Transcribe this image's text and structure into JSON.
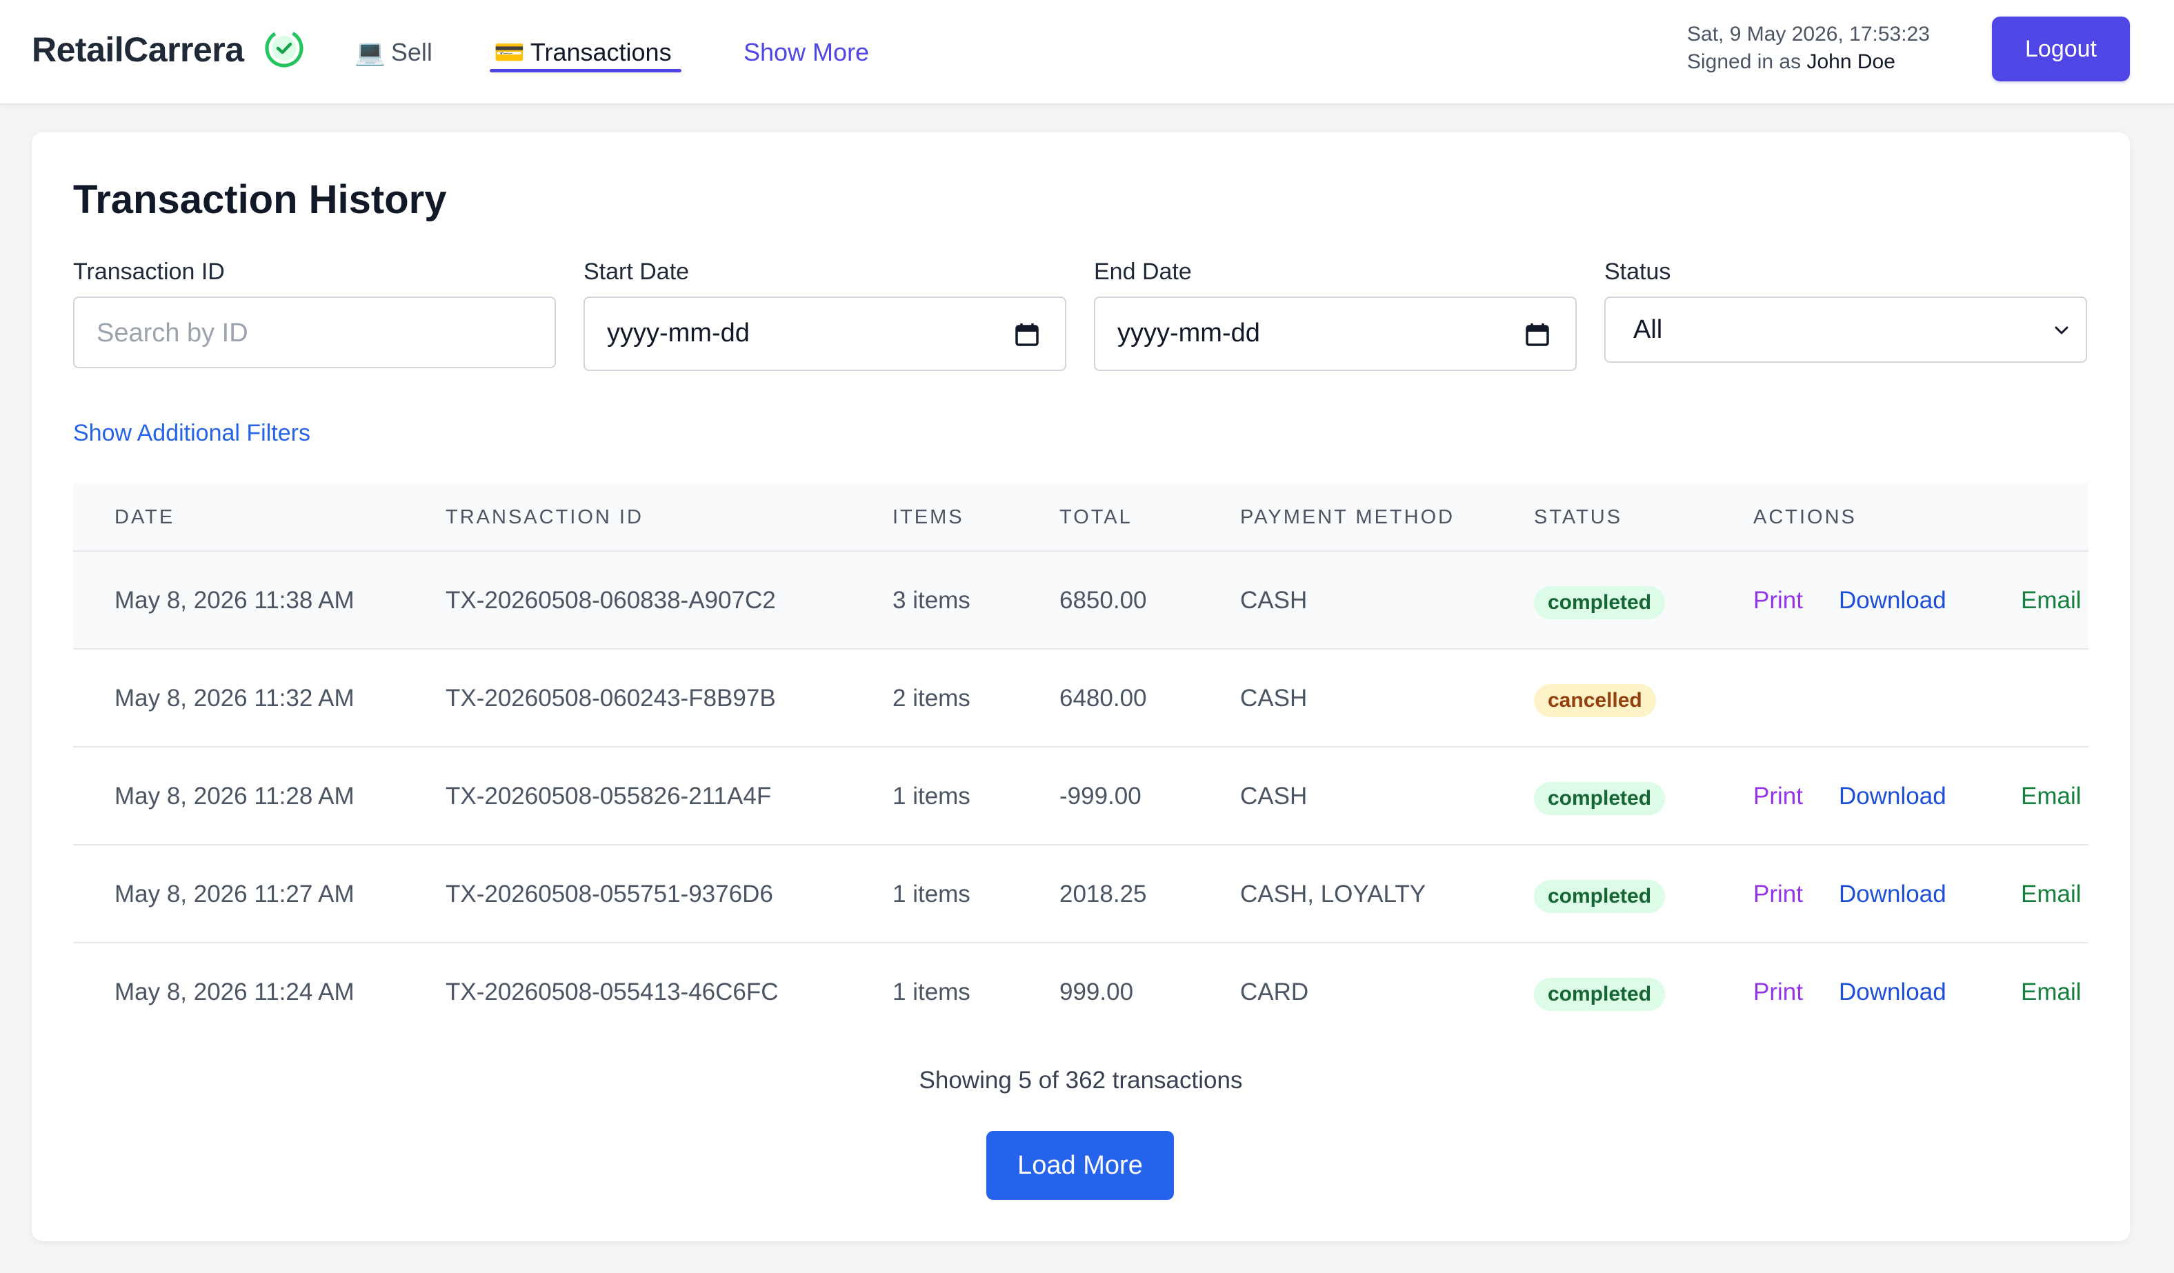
{
  "header": {
    "brand": "RetailCarrera",
    "brand_icon": "check-circle-icon",
    "nav": {
      "sell": {
        "emoji": "💻",
        "label": "Sell"
      },
      "transactions": {
        "emoji": "💳",
        "label": "Transactions"
      },
      "show_more": "Show More"
    },
    "datetime": "Sat, 9 May 2026, 17:53:23",
    "signed_in_prefix": "Signed in as",
    "user": "John Doe",
    "logout": "Logout",
    "colors": {
      "accent": "#4f46e5",
      "brand_check": "#22c55e"
    }
  },
  "page": {
    "title": "Transaction History"
  },
  "filters": {
    "transaction_id": {
      "label": "Transaction ID",
      "placeholder": "Search by ID",
      "value": ""
    },
    "start_date": {
      "label": "Start Date",
      "value": "yyyy-mm-dd"
    },
    "end_date": {
      "label": "End Date",
      "value": "yyyy-mm-dd"
    },
    "status": {
      "label": "Status",
      "value": "All"
    },
    "additional": "Show Additional Filters"
  },
  "table": {
    "columns": {
      "date": "Date",
      "id": "Transaction ID",
      "items": "Items",
      "total": "Total",
      "payment": "Payment Method",
      "status": "Status",
      "actions": "Actions"
    },
    "rows": [
      {
        "date": "May 8, 2026 11:38 AM",
        "id": "TX-20260508-060838-A907C2",
        "items": "3 items",
        "total": "6850.00",
        "payment": "CASH",
        "status": "completed",
        "print": "Print",
        "download": "Download",
        "email": "Email"
      },
      {
        "date": "May 8, 2026 11:32 AM",
        "id": "TX-20260508-060243-F8B97B",
        "items": "2 items",
        "total": "6480.00",
        "payment": "CASH",
        "status": "cancelled"
      },
      {
        "date": "May 8, 2026 11:28 AM",
        "id": "TX-20260508-055826-211A4F",
        "items": "1 items",
        "total": "-999.00",
        "payment": "CASH",
        "status": "completed",
        "print": "Print",
        "download": "Download",
        "email": "Email"
      },
      {
        "date": "May 8, 2026 11:27 AM",
        "id": "TX-20260508-055751-9376D6",
        "items": "1 items",
        "total": "2018.25",
        "payment": "CASH, LOYALTY",
        "status": "completed",
        "print": "Print",
        "download": "Download",
        "email": "Email"
      },
      {
        "date": "May 8, 2026 11:24 AM",
        "id": "TX-20260508-055413-46C6FC",
        "items": "1 items",
        "total": "999.00",
        "payment": "CARD",
        "status": "completed",
        "print": "Print",
        "download": "Download",
        "email": "Email"
      }
    ],
    "status_colors": {
      "completed": {
        "bg": "#dcfce7",
        "fg": "#166534"
      },
      "cancelled": {
        "bg": "#fef3c7",
        "fg": "#92400e"
      }
    }
  },
  "footer": {
    "showing": "Showing 5 of 362 transactions",
    "load_more": "Load More"
  }
}
